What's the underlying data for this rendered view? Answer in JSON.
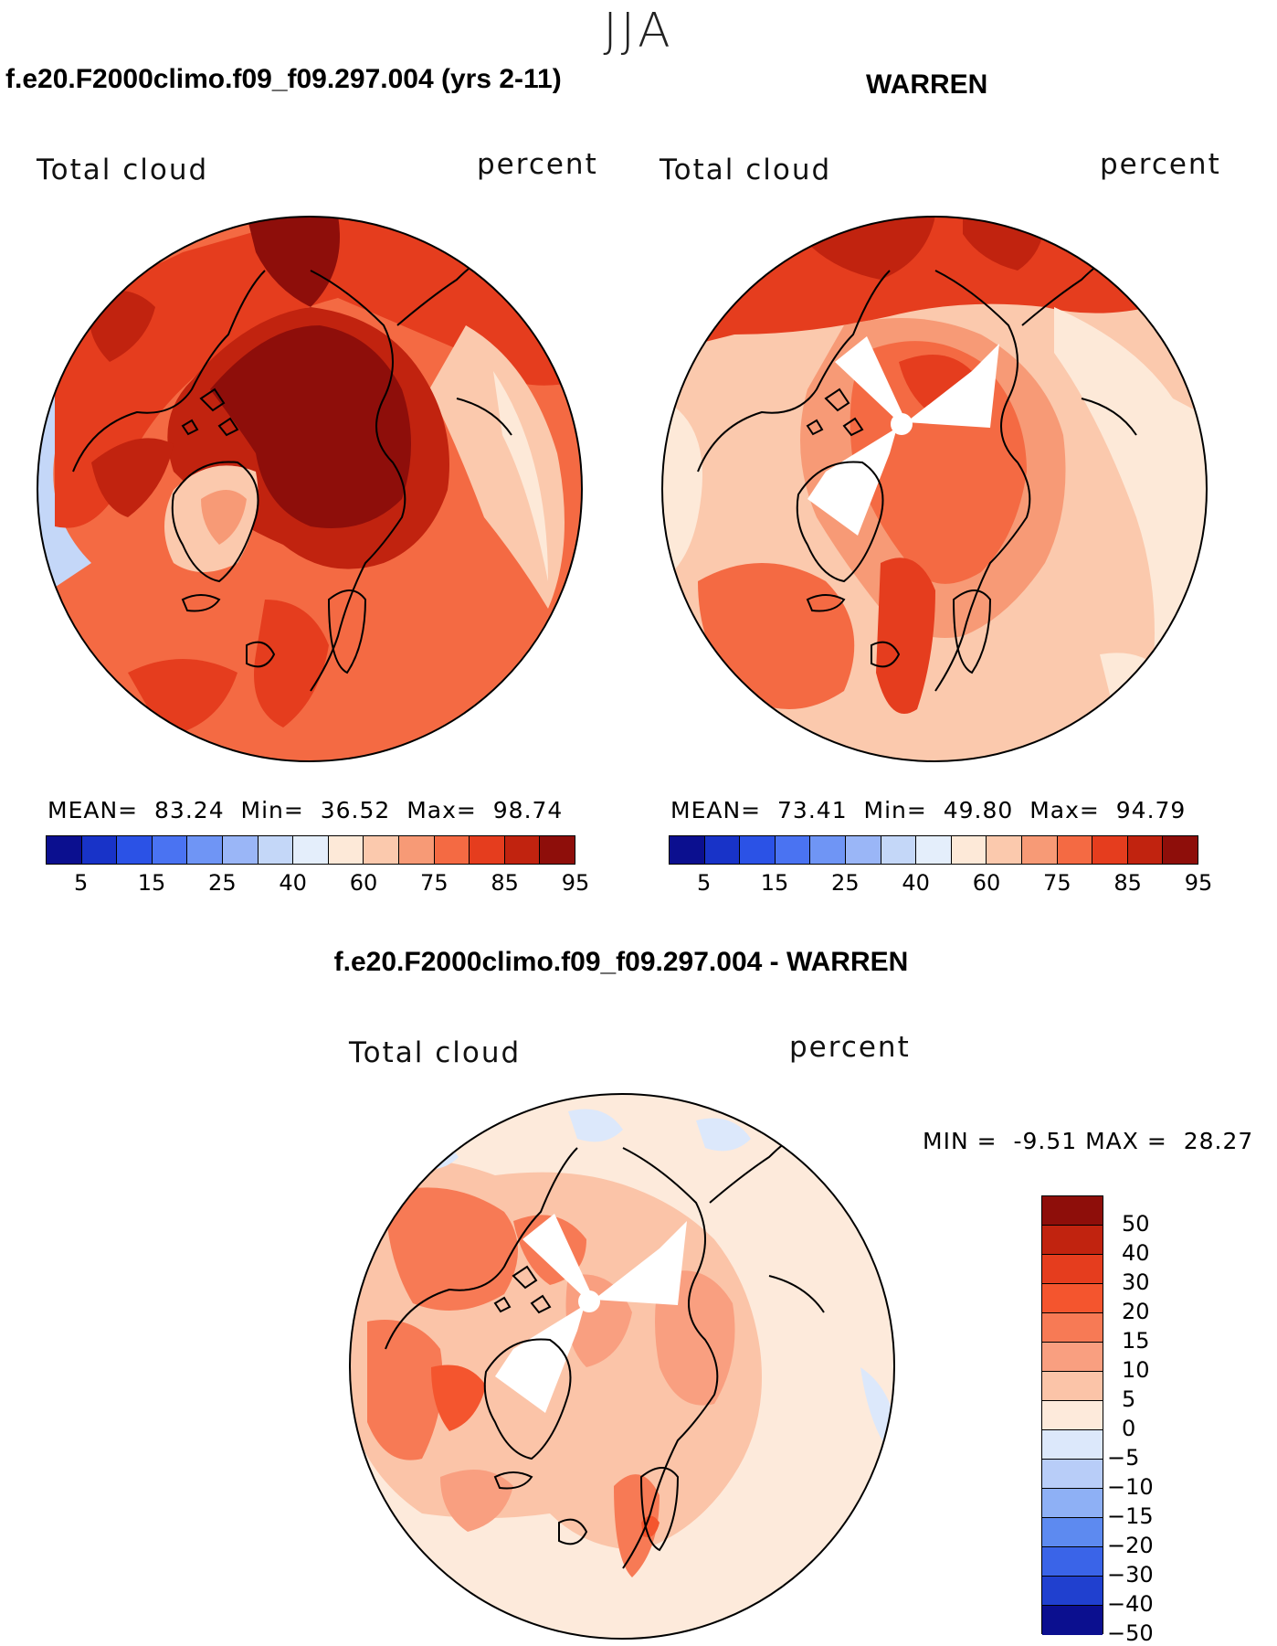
{
  "season_title": "JJA",
  "panels": [
    {
      "title": "f.e20.F2000climo.f09_f09.297.004 (yrs 2-11)",
      "variable": "Total cloud",
      "units": "percent",
      "mean_label": "MEAN=",
      "mean": "83.24",
      "min_label": "Min=",
      "min": "36.52",
      "max_label": "Max=",
      "max": "98.74"
    },
    {
      "title": "WARREN",
      "variable": "Total cloud",
      "units": "percent",
      "mean_label": "MEAN=",
      "mean": "73.41",
      "min_label": "Min=",
      "min": "49.80",
      "max_label": "Max=",
      "max": "94.79"
    }
  ],
  "diff_panel": {
    "title": "f.e20.F2000climo.f09_f09.297.004 - WARREN",
    "variable": "Total cloud",
    "units": "percent",
    "min_label": "MIN =",
    "min": "-9.51",
    "max_label": "MAX =",
    "max": "28.27"
  },
  "chart_data": [
    {
      "type": "heatmap",
      "projection": "north polar stereographic",
      "field": "Total cloud",
      "units": "percent",
      "mean": 83.24,
      "min": 36.52,
      "max": 98.74,
      "colorbar_levels": [
        "5",
        "15",
        "25",
        "40",
        "60",
        "75",
        "85",
        "95"
      ],
      "colorbar_colors": [
        "#0b0f8f",
        "#1833c8",
        "#2b52e6",
        "#4a73f2",
        "#6f95f5",
        "#9ab6f7",
        "#c4d7f8",
        "#e4eefb",
        "#fde9d8",
        "#fbc9ad",
        "#f79a76",
        "#f46a43",
        "#e53d1e",
        "#c1230f",
        "#8e0e0a"
      ]
    },
    {
      "type": "heatmap",
      "projection": "north polar stereographic",
      "field": "Total cloud",
      "units": "percent",
      "mean": 73.41,
      "min": 49.8,
      "max": 94.79,
      "colorbar_levels": [
        "5",
        "15",
        "25",
        "40",
        "60",
        "75",
        "85",
        "95"
      ],
      "colorbar_colors": [
        "#0b0f8f",
        "#1833c8",
        "#2b52e6",
        "#4a73f2",
        "#6f95f5",
        "#9ab6f7",
        "#c4d7f8",
        "#e4eefb",
        "#fde9d8",
        "#fbc9ad",
        "#f79a76",
        "#f46a43",
        "#e53d1e",
        "#c1230f",
        "#8e0e0a"
      ]
    },
    {
      "type": "heatmap",
      "projection": "north polar stereographic",
      "field": "Total cloud difference",
      "units": "percent",
      "min": -9.51,
      "max": 28.27,
      "colorbar_levels": [
        "50",
        "40",
        "30",
        "20",
        "15",
        "10",
        "5",
        "0",
        "−5",
        "−10",
        "−15",
        "−20",
        "−30",
        "−40",
        "−50"
      ],
      "colorbar_colors": [
        "#8e0e0a",
        "#c1230f",
        "#e53d1e",
        "#f4552e",
        "#f77a55",
        "#f99f80",
        "#fbc4a8",
        "#fdeadb",
        "#dce8fb",
        "#b8cdf8",
        "#8eb0f5",
        "#5d8af0",
        "#3a64e8",
        "#2040cf",
        "#0b0f8f"
      ]
    }
  ]
}
